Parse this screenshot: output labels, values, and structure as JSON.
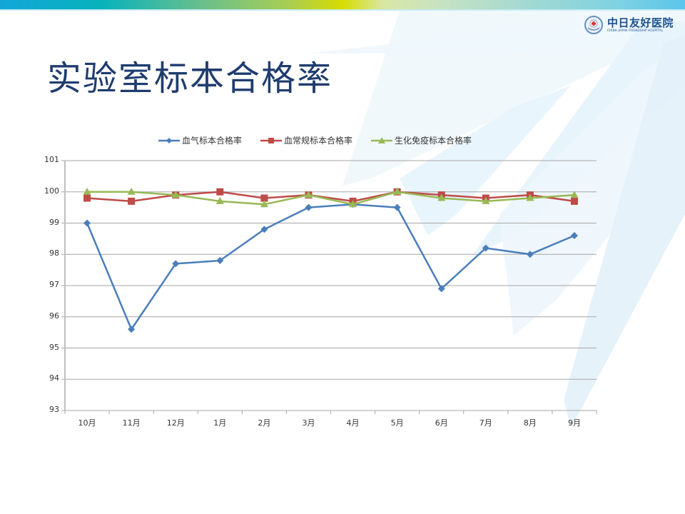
{
  "slide": {
    "title": "实验室标本合格率",
    "logo": {
      "name_cn": "中日友好医院",
      "name_en": "CHINA-JAPAN FRIENDSHIP HOSPITAL"
    }
  },
  "colors": {
    "title": "#1f3c6e",
    "series_blue": "#4a7ebb",
    "series_red": "#be4b48",
    "series_green": "#98b954",
    "gridline": "#a6a6a6"
  },
  "chart_data": {
    "type": "line",
    "title": "",
    "xlabel": "",
    "ylabel": "",
    "ylim": [
      93,
      101
    ],
    "yticks": [
      93,
      94,
      95,
      96,
      97,
      98,
      99,
      100,
      101
    ],
    "grid": true,
    "legend_position": "top",
    "categories": [
      "10月",
      "11月",
      "12月",
      "1月",
      "2月",
      "3月",
      "4月",
      "5月",
      "6月",
      "7月",
      "8月",
      "9月"
    ],
    "series": [
      {
        "name": "血气标本合格率",
        "color": "#4a7ebb",
        "marker": "diamond",
        "values": [
          99.0,
          95.6,
          97.7,
          97.8,
          98.8,
          99.5,
          99.6,
          99.5,
          96.9,
          98.2,
          98.0,
          98.6
        ]
      },
      {
        "name": "血常规标本合格率",
        "color": "#be4b48",
        "marker": "square",
        "values": [
          99.8,
          99.7,
          99.9,
          100.0,
          99.8,
          99.9,
          99.7,
          100.0,
          99.9,
          99.8,
          99.9,
          99.7
        ]
      },
      {
        "name": "生化免疫标本合格率",
        "color": "#98b954",
        "marker": "triangle",
        "values": [
          100.0,
          100.0,
          99.9,
          99.7,
          99.6,
          99.9,
          99.6,
          100.0,
          99.8,
          99.7,
          99.8,
          99.9
        ]
      }
    ]
  }
}
